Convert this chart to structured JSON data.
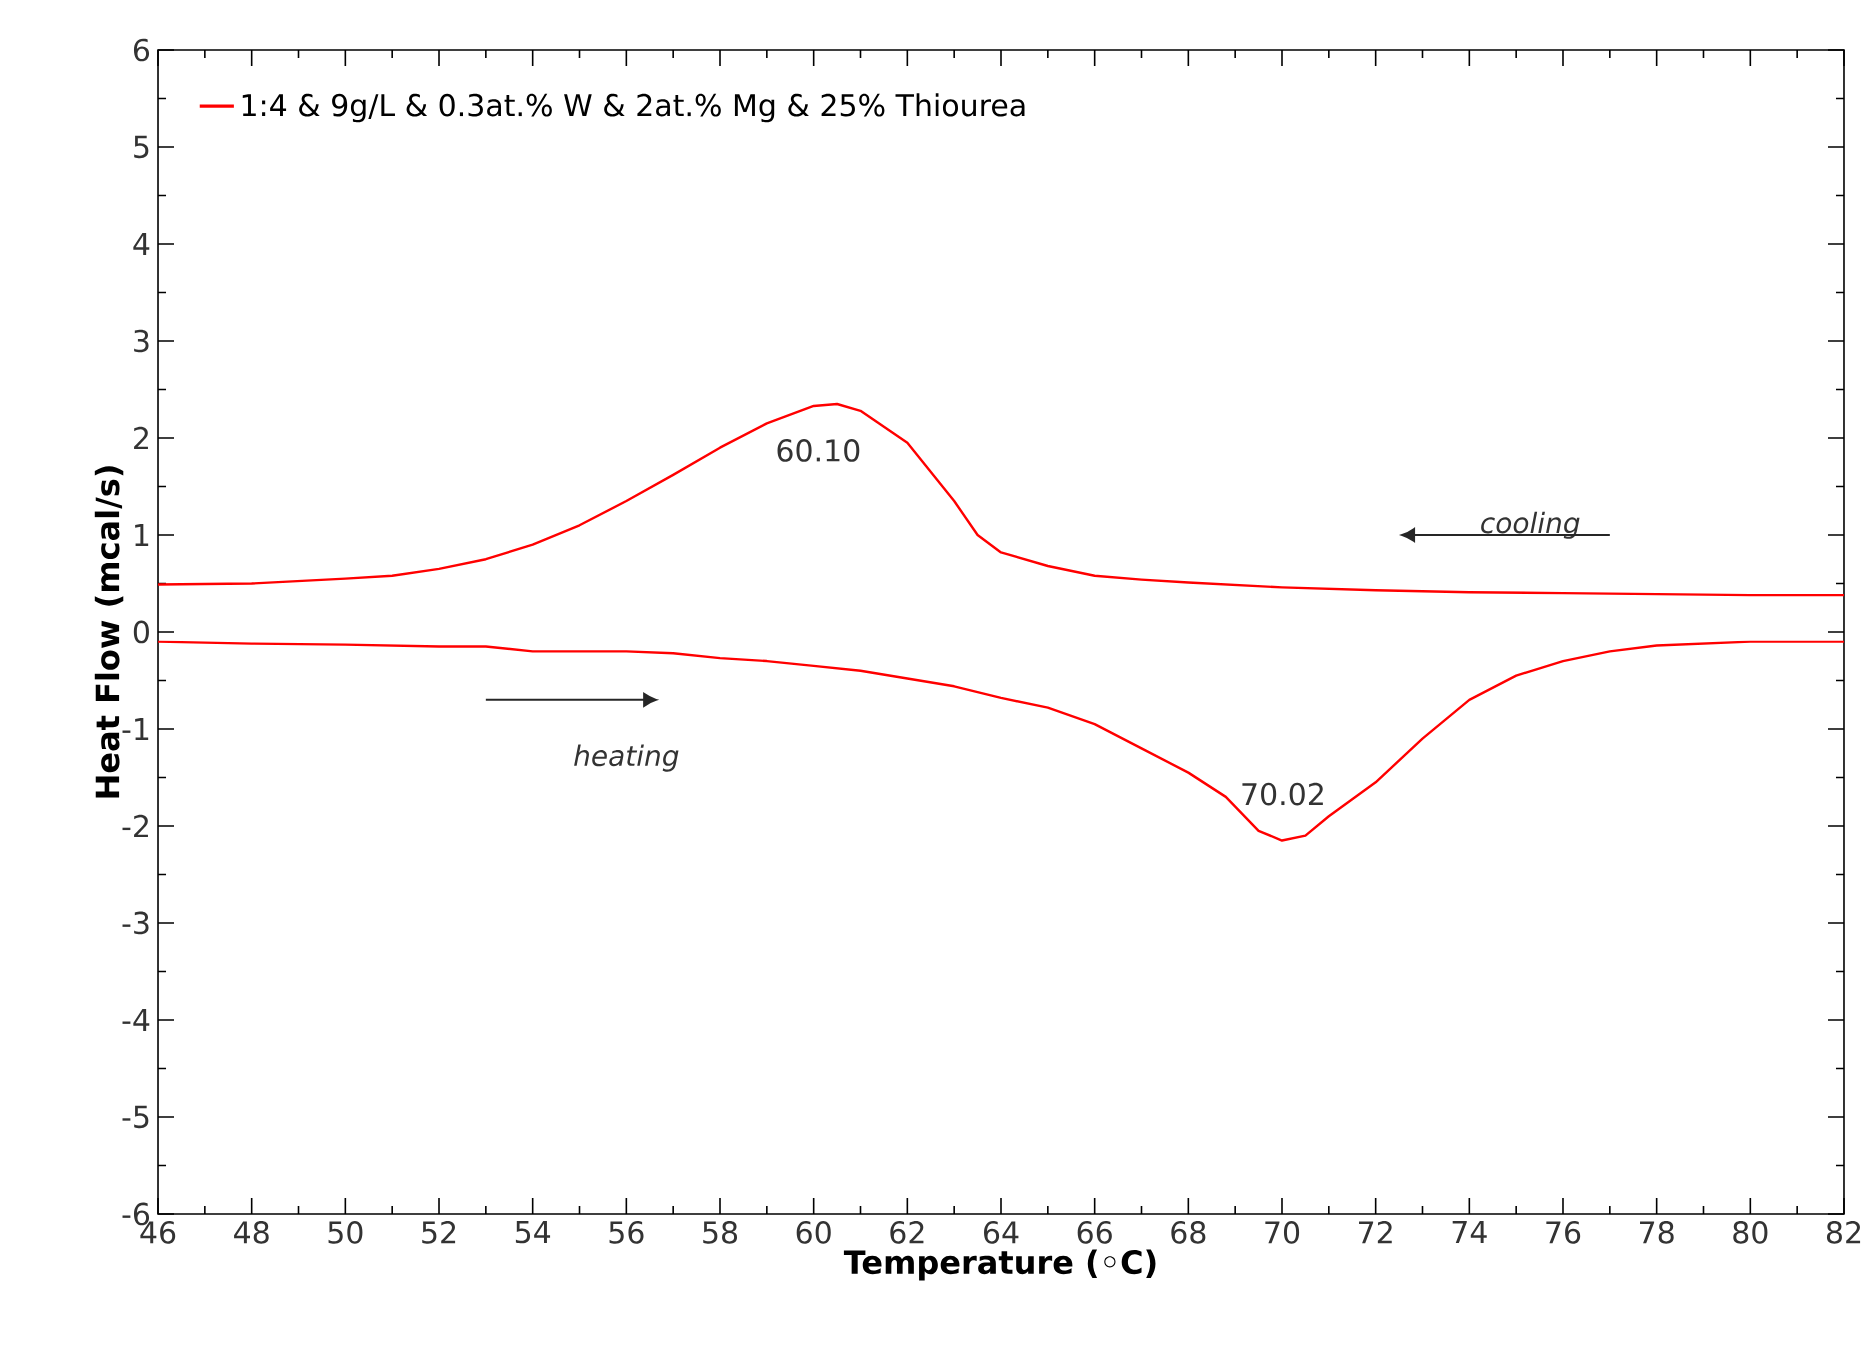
{
  "chart_data": {
    "type": "line",
    "xlabel": "Temperature (◦C)",
    "ylabel": "Heat Flow (mcal/s)",
    "xlim": [
      46,
      82
    ],
    "ylim": [
      -6,
      6
    ],
    "xticks": [
      46,
      48,
      50,
      52,
      54,
      56,
      58,
      60,
      62,
      64,
      66,
      68,
      70,
      72,
      74,
      76,
      78,
      80,
      82
    ],
    "yticks": [
      -6,
      -5,
      -4,
      -3,
      -2,
      -1,
      0,
      1,
      2,
      3,
      4,
      5,
      6
    ],
    "grid": false,
    "legend": "top left",
    "marker": "none",
    "line_style": "solid",
    "series": [
      {
        "name": "1:4 & 9g/L &  0.3at.% W & 2at.% Mg & 25% Thiourea",
        "color": "#ff0000",
        "x": [
          46,
          48,
          50,
          51,
          52,
          53,
          54,
          55,
          56,
          57,
          58,
          59,
          60,
          60.5,
          61,
          62,
          63,
          63.5,
          64,
          65,
          66,
          67,
          68,
          70,
          72,
          74,
          76,
          78,
          80,
          82
        ],
        "values": [
          0.49,
          0.5,
          0.55,
          0.58,
          0.65,
          0.75,
          0.9,
          1.1,
          1.35,
          1.62,
          1.9,
          2.15,
          2.33,
          2.35,
          2.28,
          1.95,
          1.35,
          1.0,
          0.82,
          0.68,
          0.58,
          0.54,
          0.51,
          0.46,
          0.43,
          0.41,
          0.4,
          0.39,
          0.38,
          0.38
        ]
      },
      {
        "color": "#ff0000",
        "x": [
          46,
          48,
          50,
          52,
          53,
          54,
          56,
          57,
          58,
          59,
          60,
          61,
          62,
          63,
          64,
          65,
          66,
          67,
          68,
          68.8,
          69.5,
          70,
          70.5,
          71,
          72,
          73,
          74,
          75,
          76,
          77,
          78,
          80,
          82
        ],
        "values": [
          -0.1,
          -0.12,
          -0.13,
          -0.15,
          -0.15,
          -0.2,
          -0.2,
          -0.22,
          -0.27,
          -0.3,
          -0.35,
          -0.4,
          -0.48,
          -0.56,
          -0.68,
          -0.78,
          -0.95,
          -1.2,
          -1.45,
          -1.7,
          -2.05,
          -2.15,
          -2.1,
          -1.9,
          -1.55,
          -1.1,
          -0.7,
          -0.45,
          -0.3,
          -0.2,
          -0.14,
          -0.1,
          -0.1
        ]
      }
    ],
    "annotations": [
      {
        "text": "60.10",
        "x": 60.1,
        "y": 2.35
      },
      {
        "text": "70.02",
        "x": 70.02,
        "y": -2.15
      },
      "cooling",
      "heating"
    ]
  }
}
